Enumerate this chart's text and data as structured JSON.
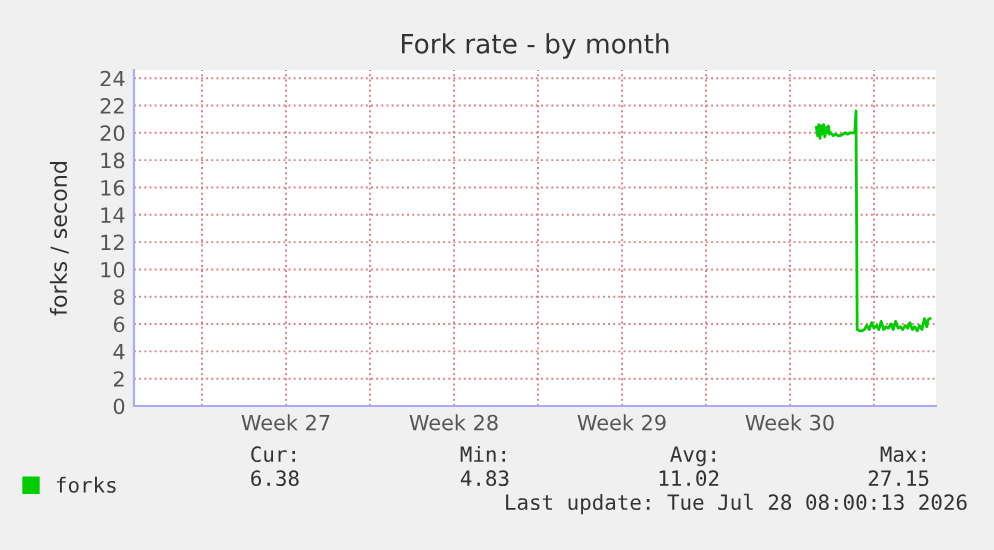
{
  "chart_data": {
    "type": "line",
    "title": "Fork rate - by month",
    "ylabel": "forks / second",
    "x": [
      "2026-07-23T14:24",
      "2026-07-23T15:36",
      "2026-07-23T16:48",
      "2026-07-23T18:00",
      "2026-07-23T19:12",
      "2026-07-23T20:24",
      "2026-07-23T21:36",
      "2026-07-23T22:48",
      "2026-07-24T00:00",
      "2026-07-24T01:12",
      "2026-07-24T02:24",
      "2026-07-24T03:36",
      "2026-07-24T04:48",
      "2026-07-24T07:12",
      "2026-07-24T09:36",
      "2026-07-24T12:00",
      "2026-07-24T14:24",
      "2026-07-24T16:48",
      "2026-07-24T19:12",
      "2026-07-24T21:36",
      "2026-07-25T00:00",
      "2026-07-25T02:24",
      "2026-07-25T04:48",
      "2026-07-25T06:00",
      "2026-07-25T07:12",
      "2026-07-25T09:36",
      "2026-07-25T12:00",
      "2026-07-25T14:24",
      "2026-07-25T16:48",
      "2026-07-25T19:12",
      "2026-07-25T21:36",
      "2026-07-26T00:00",
      "2026-07-26T02:24",
      "2026-07-26T04:48",
      "2026-07-26T07:12",
      "2026-07-26T09:36",
      "2026-07-26T12:00",
      "2026-07-26T14:24",
      "2026-07-26T16:48",
      "2026-07-26T19:12",
      "2026-07-26T21:36",
      "2026-07-27T00:00",
      "2026-07-27T02:24",
      "2026-07-27T04:48",
      "2026-07-27T07:12",
      "2026-07-27T09:36",
      "2026-07-27T12:00",
      "2026-07-27T14:24",
      "2026-07-27T16:48",
      "2026-07-27T19:12",
      "2026-07-27T21:36",
      "2026-07-28T00:00",
      "2026-07-28T02:24",
      "2026-07-28T04:48",
      "2026-07-28T06:00",
      "2026-07-28T08:00"
    ],
    "series": [
      {
        "name": "forks",
        "color": "#00cc00",
        "values": [
          20.4,
          19.8,
          20.6,
          19.6,
          20.5,
          19.9,
          20.6,
          19.7,
          20.4,
          20.0,
          20.5,
          19.9,
          20.0,
          19.8,
          19.9,
          19.8,
          19.8,
          19.9,
          20.0,
          19.9,
          20.0,
          20.0,
          20.0,
          21.6,
          5.6,
          5.5,
          5.5,
          5.6,
          5.9,
          5.6,
          6.1,
          5.7,
          5.9,
          5.6,
          6.2,
          5.6,
          5.8,
          5.7,
          6.0,
          5.6,
          6.2,
          5.7,
          5.8,
          5.6,
          5.9,
          5.7,
          6.1,
          5.6,
          5.8,
          5.5,
          5.9,
          5.6,
          6.4,
          5.8,
          6.3,
          6.4
        ]
      }
    ],
    "xlim": [
      "2026-06-25T04:00",
      "2026-07-28T14:00"
    ],
    "xticks": [
      {
        "value": "2026-06-28",
        "label": null
      },
      {
        "value": "2026-07-01T12:00",
        "label": "Week 27"
      },
      {
        "value": "2026-07-05",
        "label": null
      },
      {
        "value": "2026-07-08T12:00",
        "label": "Week 28"
      },
      {
        "value": "2026-07-12",
        "label": null
      },
      {
        "value": "2026-07-15T12:00",
        "label": "Week 29"
      },
      {
        "value": "2026-07-19",
        "label": null
      },
      {
        "value": "2026-07-22T12:00",
        "label": "Week 30"
      },
      {
        "value": "2026-07-26",
        "label": null
      }
    ],
    "ylim": [
      0,
      24.6
    ],
    "yticks": [
      0,
      2,
      4,
      6,
      8,
      10,
      12,
      14,
      16,
      18,
      20,
      22,
      24
    ],
    "grid": true,
    "legend": "bottom",
    "line_style": "solid",
    "marker": "none",
    "annotations": [
      "Cur:",
      "Min:",
      "Avg:",
      "Max:",
      "6.38",
      "4.83",
      "11.02",
      "27.15",
      "Last update: Tue Jul 28 08:00:13 2026"
    ]
  }
}
